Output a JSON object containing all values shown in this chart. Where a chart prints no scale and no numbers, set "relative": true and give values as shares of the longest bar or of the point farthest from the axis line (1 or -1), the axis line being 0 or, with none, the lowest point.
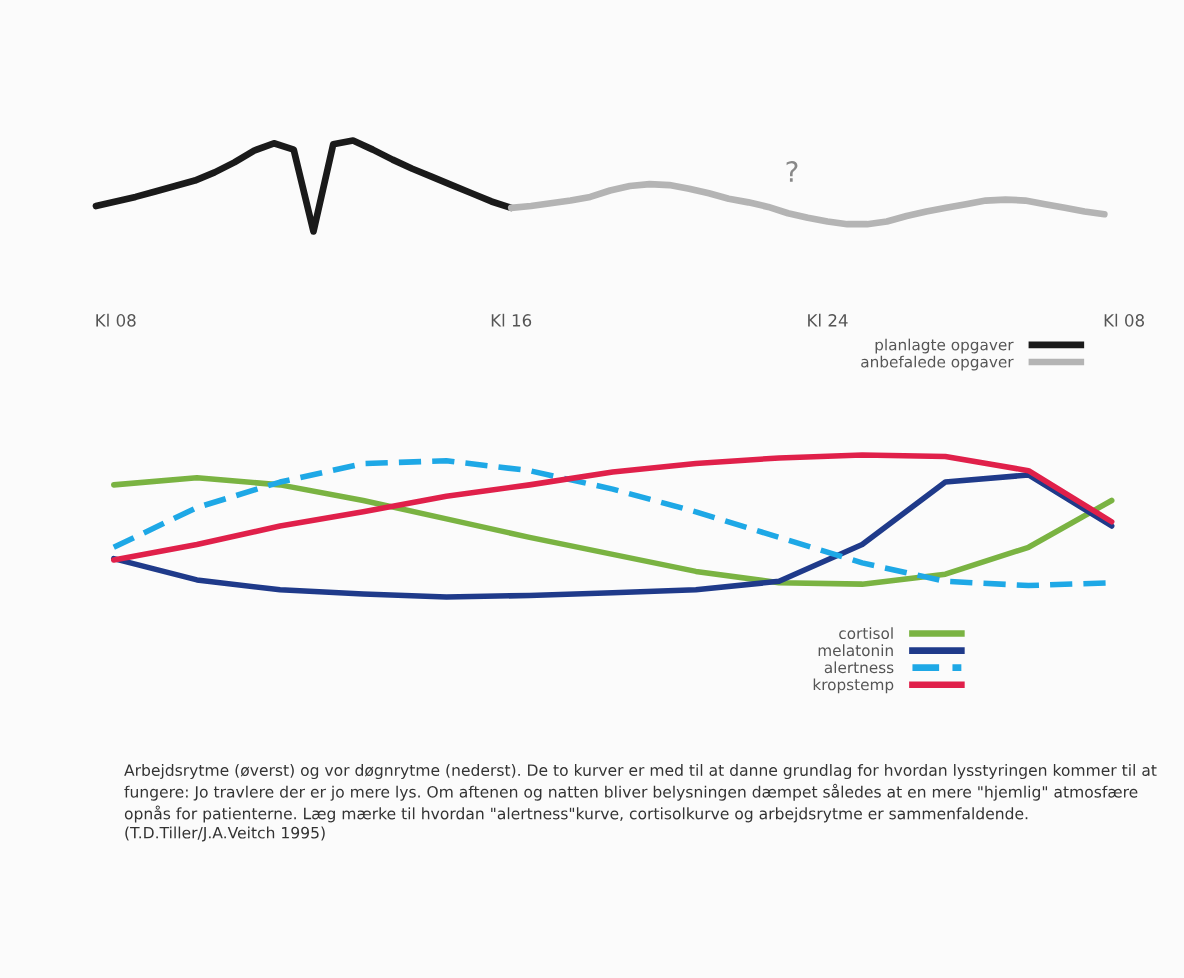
{
  "chart_data": [
    {
      "type": "line",
      "relative": true,
      "categories": [
        null,
        "Kl 08",
        null,
        null,
        null,
        null,
        null,
        null,
        null,
        null,
        null,
        null,
        null,
        null,
        null,
        null,
        null,
        null,
        null,
        null,
        null,
        "Kl 16",
        null,
        null,
        null,
        null,
        null,
        null,
        null,
        null,
        null,
        null,
        null,
        null,
        null,
        null,
        null,
        "Kl 24",
        null,
        null,
        null,
        null,
        null,
        null,
        null,
        null,
        null,
        null,
        null,
        null,
        null,
        null,
        "Kl 08"
      ],
      "grid": false,
      "legend": "bottom right",
      "series": [
        {
          "name": "planlagte opgaver",
          "color": "#1a1a1a",
          "values": [
            0.28,
            0.33,
            0.38,
            0.44,
            0.5,
            0.56,
            0.65,
            0.76,
            0.89,
            0.97,
            0.9,
            0.0,
            0.96,
            1.0,
            0.9,
            0.79,
            0.69,
            0.6,
            0.51,
            0.42,
            0.33,
            0.26,
            null,
            null,
            null,
            null,
            null,
            null,
            null,
            null,
            null,
            null,
            null,
            null,
            null,
            null,
            null,
            null,
            null,
            null,
            null,
            null,
            null,
            null,
            null,
            null,
            null,
            null,
            null,
            null,
            null,
            null,
            null
          ]
        },
        {
          "name": "anbefalede opgaver",
          "color": "#b4b4b4",
          "values": [
            null,
            null,
            null,
            null,
            null,
            null,
            null,
            null,
            null,
            null,
            null,
            null,
            null,
            null,
            null,
            null,
            null,
            null,
            null,
            null,
            null,
            0.26,
            0.28,
            0.31,
            0.34,
            0.38,
            0.45,
            0.5,
            0.52,
            0.51,
            0.47,
            0.42,
            0.36,
            0.32,
            0.27,
            0.2,
            0.15,
            0.11,
            0.08,
            0.08,
            0.11,
            0.17,
            0.22,
            0.26,
            0.3,
            0.34,
            0.35,
            0.34,
            0.3,
            0.26,
            0.22,
            0.19,
            null
          ]
        }
      ],
      "annotations": [
        "?"
      ]
    },
    {
      "type": "line",
      "relative": true,
      "categories": [
        null,
        null,
        null,
        null,
        null,
        null,
        null,
        null,
        null,
        null,
        null,
        null,
        null
      ],
      "grid": false,
      "legend": "bottom right",
      "series": [
        {
          "name": "cortisol",
          "color": "#7ab342",
          "values": [
            0.79,
            0.84,
            0.79,
            0.68,
            0.55,
            0.42,
            0.3,
            0.18,
            0.1,
            0.09,
            0.16,
            0.35,
            0.68
          ]
        },
        {
          "name": "melatonin",
          "color": "#1f3a8a",
          "values": [
            0.27,
            0.12,
            0.05,
            0.02,
            0.0,
            0.01,
            0.03,
            0.05,
            0.11,
            0.37,
            0.81,
            0.86,
            0.5
          ]
        },
        {
          "name": "alertness",
          "color": "#1ea8e6",
          "line_style": "dashed",
          "values": [
            0.35,
            0.63,
            0.81,
            0.94,
            0.96,
            0.89,
            0.76,
            0.6,
            0.42,
            0.24,
            0.11,
            0.08,
            0.1
          ]
        },
        {
          "name": "kropstemp",
          "color": "#e0204a",
          "values": [
            0.26,
            0.37,
            0.5,
            0.6,
            0.71,
            0.79,
            0.88,
            0.94,
            0.98,
            1.0,
            0.99,
            0.89,
            0.53
          ]
        }
      ],
      "annotations": [
        "Arbejdsrytme (øverst) og vor døgnrytme (nederst). De to kurver er med til at danne grundlag for hvordan lysstyringen kommer til at fungere: Jo travlere der er jo mere lys. Om aftenen og natten bliver belysningen dæmpet således at en mere \"hjemlig\" atmosfære opnås for patienterne. Læg mærke til hvordan \"alertness\"kurve, cortisolkurve og arbejdsrytme er sammenfaldende. (T.D.Tiller/J.A.Veitch 1995)"
      ]
    }
  ]
}
